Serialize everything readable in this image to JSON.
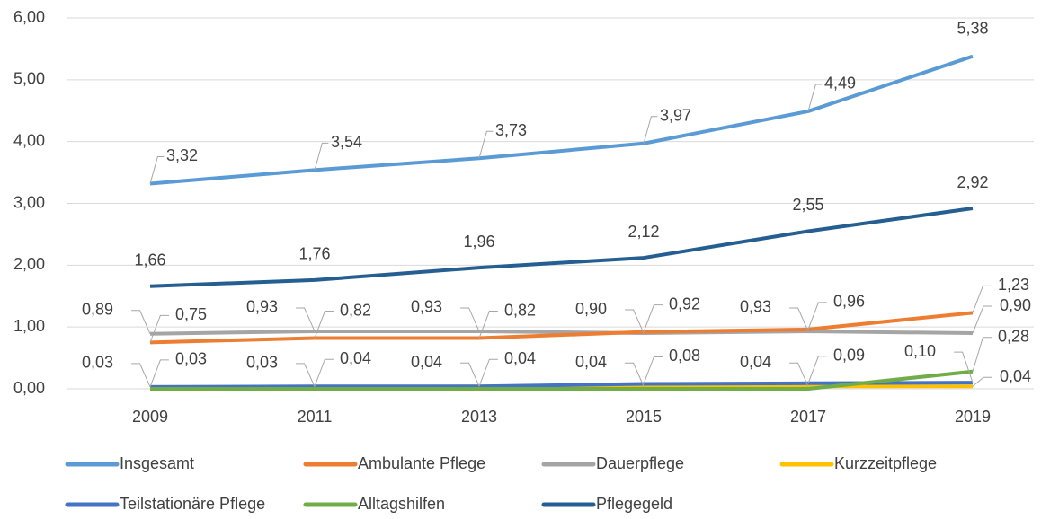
{
  "chart_data": {
    "type": "line",
    "categories": [
      "2009",
      "2011",
      "2013",
      "2015",
      "2017",
      "2019"
    ],
    "series": [
      {
        "name": "Insgesamt",
        "color": "#5b9bd5",
        "values": [
          3.32,
          3.54,
          3.73,
          3.97,
          4.49,
          5.38
        ],
        "value_labels": [
          "3,32",
          "3,54",
          "3,73",
          "3,97",
          "4,49",
          "5,38"
        ]
      },
      {
        "name": "Ambulante Pflege",
        "color": "#ed7d31",
        "values": [
          0.75,
          0.82,
          0.82,
          0.92,
          0.96,
          1.23
        ],
        "value_labels": [
          "0,75",
          "0,82",
          "0,82",
          "0,92",
          "0,96",
          "1,23"
        ]
      },
      {
        "name": "Dauerpflege",
        "color": "#a5a5a5",
        "values": [
          0.89,
          0.93,
          0.93,
          0.9,
          0.93,
          0.9
        ],
        "value_labels": [
          "0,89",
          "0,93",
          "0,93",
          "0,90",
          "0,93",
          "0,90"
        ]
      },
      {
        "name": "Kurzzeitpflege",
        "color": "#ffc000",
        "values": [
          0.03,
          0.03,
          0.04,
          0.04,
          0.04,
          0.04
        ],
        "value_labels": [
          "0,03",
          "0,03",
          "0,04",
          "0,04",
          "0,04",
          "0,04"
        ]
      },
      {
        "name": "Teilstationäre Pflege",
        "color": "#4472c4",
        "values": [
          0.03,
          0.04,
          0.04,
          0.08,
          0.09,
          0.1
        ],
        "value_labels": [
          "0,03",
          "0,04",
          "0,04",
          "0,08",
          "0,09",
          "0,10"
        ]
      },
      {
        "name": "Alltagshilfen",
        "color": "#70ad47",
        "values": [
          0,
          0,
          0,
          0,
          0,
          0.28
        ],
        "value_labels": [
          null,
          null,
          null,
          null,
          null,
          "0,28"
        ]
      },
      {
        "name": "Pflegegeld",
        "color": "#255e91",
        "values": [
          1.66,
          1.76,
          1.96,
          2.12,
          2.55,
          2.92
        ],
        "value_labels": [
          "1,66",
          "1,76",
          "1,96",
          "2,12",
          "2,55",
          "2,92"
        ]
      }
    ],
    "ylim": [
      0,
      6
    ],
    "yticks": [
      {
        "value": 0,
        "label": "0,00"
      },
      {
        "value": 1,
        "label": "1,00"
      },
      {
        "value": 2,
        "label": "2,00"
      },
      {
        "value": 3,
        "label": "3,00"
      },
      {
        "value": 4,
        "label": "4,00"
      },
      {
        "value": 5,
        "label": "5,00"
      },
      {
        "value": 6,
        "label": "6,00"
      }
    ],
    "grid": true
  }
}
